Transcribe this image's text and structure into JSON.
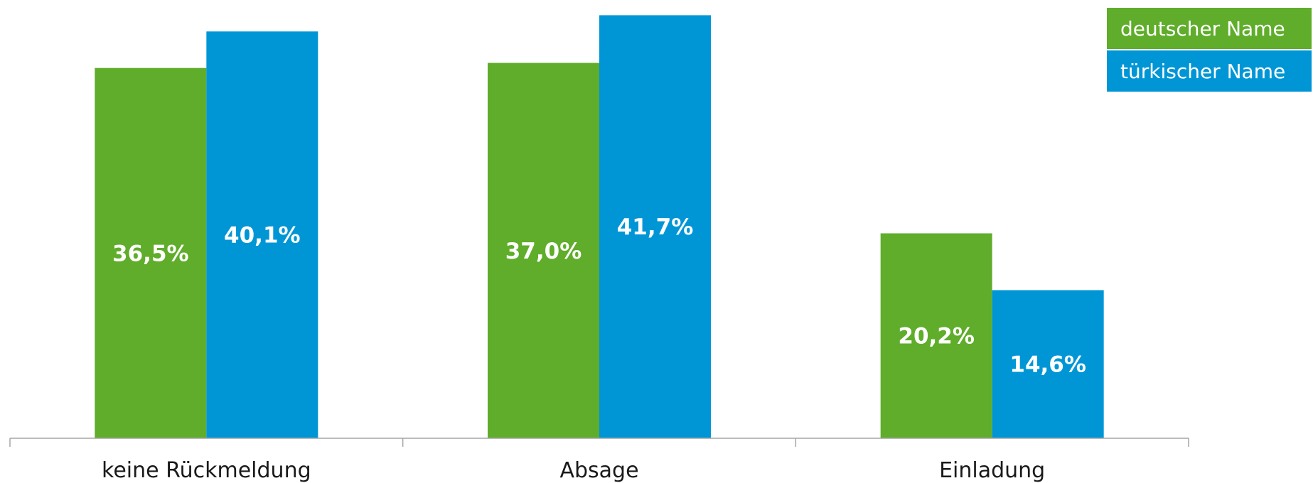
{
  "chart_data": {
    "type": "bar",
    "categories": [
      "keine Rückmeldung",
      "Absage",
      "Einladung"
    ],
    "series": [
      {
        "name": "deutscher Name",
        "color": "#5fad2a",
        "values": [
          36.5,
          37.0,
          20.2
        ],
        "labels": [
          "36,5%",
          "37,0%",
          "20,2%"
        ]
      },
      {
        "name": "türkischer Name",
        "color": "#0096d6",
        "values": [
          40.1,
          41.7,
          14.6
        ],
        "labels": [
          "40,1%",
          "41,7%",
          "14,6%"
        ]
      }
    ],
    "title": "",
    "xlabel": "",
    "ylabel": "",
    "ylim": [
      0,
      42.5
    ],
    "grid": false,
    "legend_position": "top-right",
    "axis_color": "#a6a6a6"
  }
}
